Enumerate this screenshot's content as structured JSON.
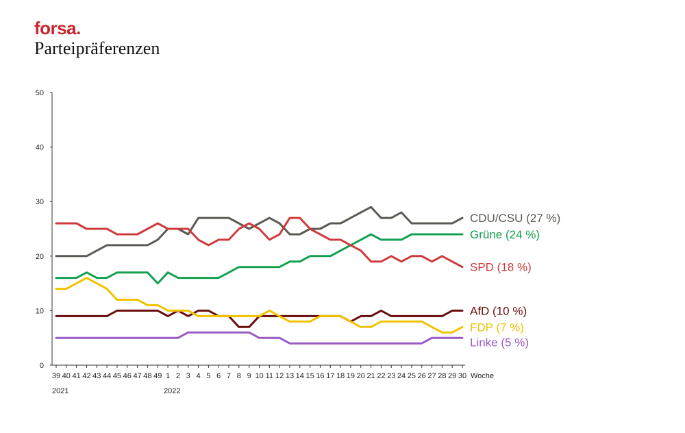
{
  "header": {
    "brand": "forsa.",
    "title": "Parteipräferenzen"
  },
  "colors": {
    "brand": "#c8262c",
    "CDU/CSU": "#5a5a55",
    "Grüne": "#14a050",
    "SPD": "#d03a3c",
    "AfD": "#6a0d0d",
    "FDP": "#f2c200",
    "Linke": "#9a5bc4"
  },
  "chart_data": {
    "type": "line",
    "title": "Parteipräferenzen",
    "xlabel": "Woche",
    "ylabel": "",
    "ylim": [
      0,
      50
    ],
    "yticks": [
      0,
      10,
      20,
      30,
      40,
      50
    ],
    "grid": false,
    "legend": "labels at line ends (right)",
    "x": [
      "39",
      "40",
      "41",
      "42",
      "43",
      "44",
      "45",
      "46",
      "47",
      "48",
      "49",
      "1",
      "2",
      "3",
      "4",
      "5",
      "6",
      "7",
      "8",
      "9",
      "10",
      "11",
      "12",
      "13",
      "14",
      "15",
      "16",
      "17",
      "18",
      "19",
      "20",
      "21",
      "22",
      "23",
      "24",
      "25",
      "26",
      "27",
      "28",
      "29",
      "30"
    ],
    "year_labels": [
      {
        "at": "39",
        "text": "2021"
      },
      {
        "at": "1",
        "text": "2022"
      }
    ],
    "series": [
      {
        "name": "CDU/CSU",
        "label": "CDU/CSU (27 %)",
        "values": [
          20,
          20,
          20,
          20,
          21,
          22,
          22,
          22,
          22,
          22,
          23,
          25,
          25,
          24,
          27,
          27,
          27,
          27,
          26,
          25,
          26,
          27,
          26,
          24,
          24,
          25,
          25,
          26,
          26,
          27,
          28,
          29,
          27,
          27,
          28,
          26,
          26,
          26,
          26,
          26,
          27
        ]
      },
      {
        "name": "Grüne",
        "label": "Grüne (24 %)",
        "values": [
          16,
          16,
          16,
          17,
          16,
          16,
          17,
          17,
          17,
          17,
          15,
          17,
          16,
          16,
          16,
          16,
          16,
          17,
          18,
          18,
          18,
          18,
          18,
          19,
          19,
          20,
          20,
          20,
          21,
          22,
          23,
          24,
          23,
          23,
          23,
          24,
          24,
          24,
          24,
          24,
          24
        ]
      },
      {
        "name": "SPD",
        "label": "SPD (18 %)",
        "values": [
          26,
          26,
          26,
          25,
          25,
          25,
          24,
          24,
          24,
          25,
          26,
          25,
          25,
          25,
          23,
          22,
          23,
          23,
          25,
          26,
          25,
          23,
          24,
          27,
          27,
          25,
          24,
          23,
          23,
          22,
          21,
          19,
          19,
          20,
          19,
          20,
          20,
          19,
          20,
          19,
          18
        ]
      },
      {
        "name": "AfD",
        "label": "AfD (10 %)",
        "values": [
          9,
          9,
          9,
          9,
          9,
          9,
          10,
          10,
          10,
          10,
          10,
          9,
          10,
          9,
          10,
          10,
          9,
          9,
          7,
          7,
          9,
          9,
          9,
          9,
          9,
          9,
          9,
          9,
          9,
          8,
          9,
          9,
          10,
          9,
          9,
          9,
          9,
          9,
          9,
          10,
          10
        ]
      },
      {
        "name": "FDP",
        "label": "FDP (7 %)",
        "values": [
          14,
          14,
          15,
          16,
          15,
          14,
          12,
          12,
          12,
          11,
          11,
          10,
          10,
          10,
          9,
          9,
          9,
          9,
          9,
          9,
          9,
          10,
          9,
          8,
          8,
          8,
          9,
          9,
          9,
          8,
          7,
          7,
          8,
          8,
          8,
          8,
          8,
          7,
          6,
          6,
          7
        ]
      },
      {
        "name": "Linke",
        "label": "Linke (5 %)",
        "values": [
          5,
          5,
          5,
          5,
          5,
          5,
          5,
          5,
          5,
          5,
          5,
          5,
          5,
          6,
          6,
          6,
          6,
          6,
          6,
          6,
          5,
          5,
          5,
          4,
          4,
          4,
          4,
          4,
          4,
          4,
          4,
          4,
          4,
          4,
          4,
          4,
          4,
          5,
          5,
          5,
          5
        ]
      }
    ]
  }
}
